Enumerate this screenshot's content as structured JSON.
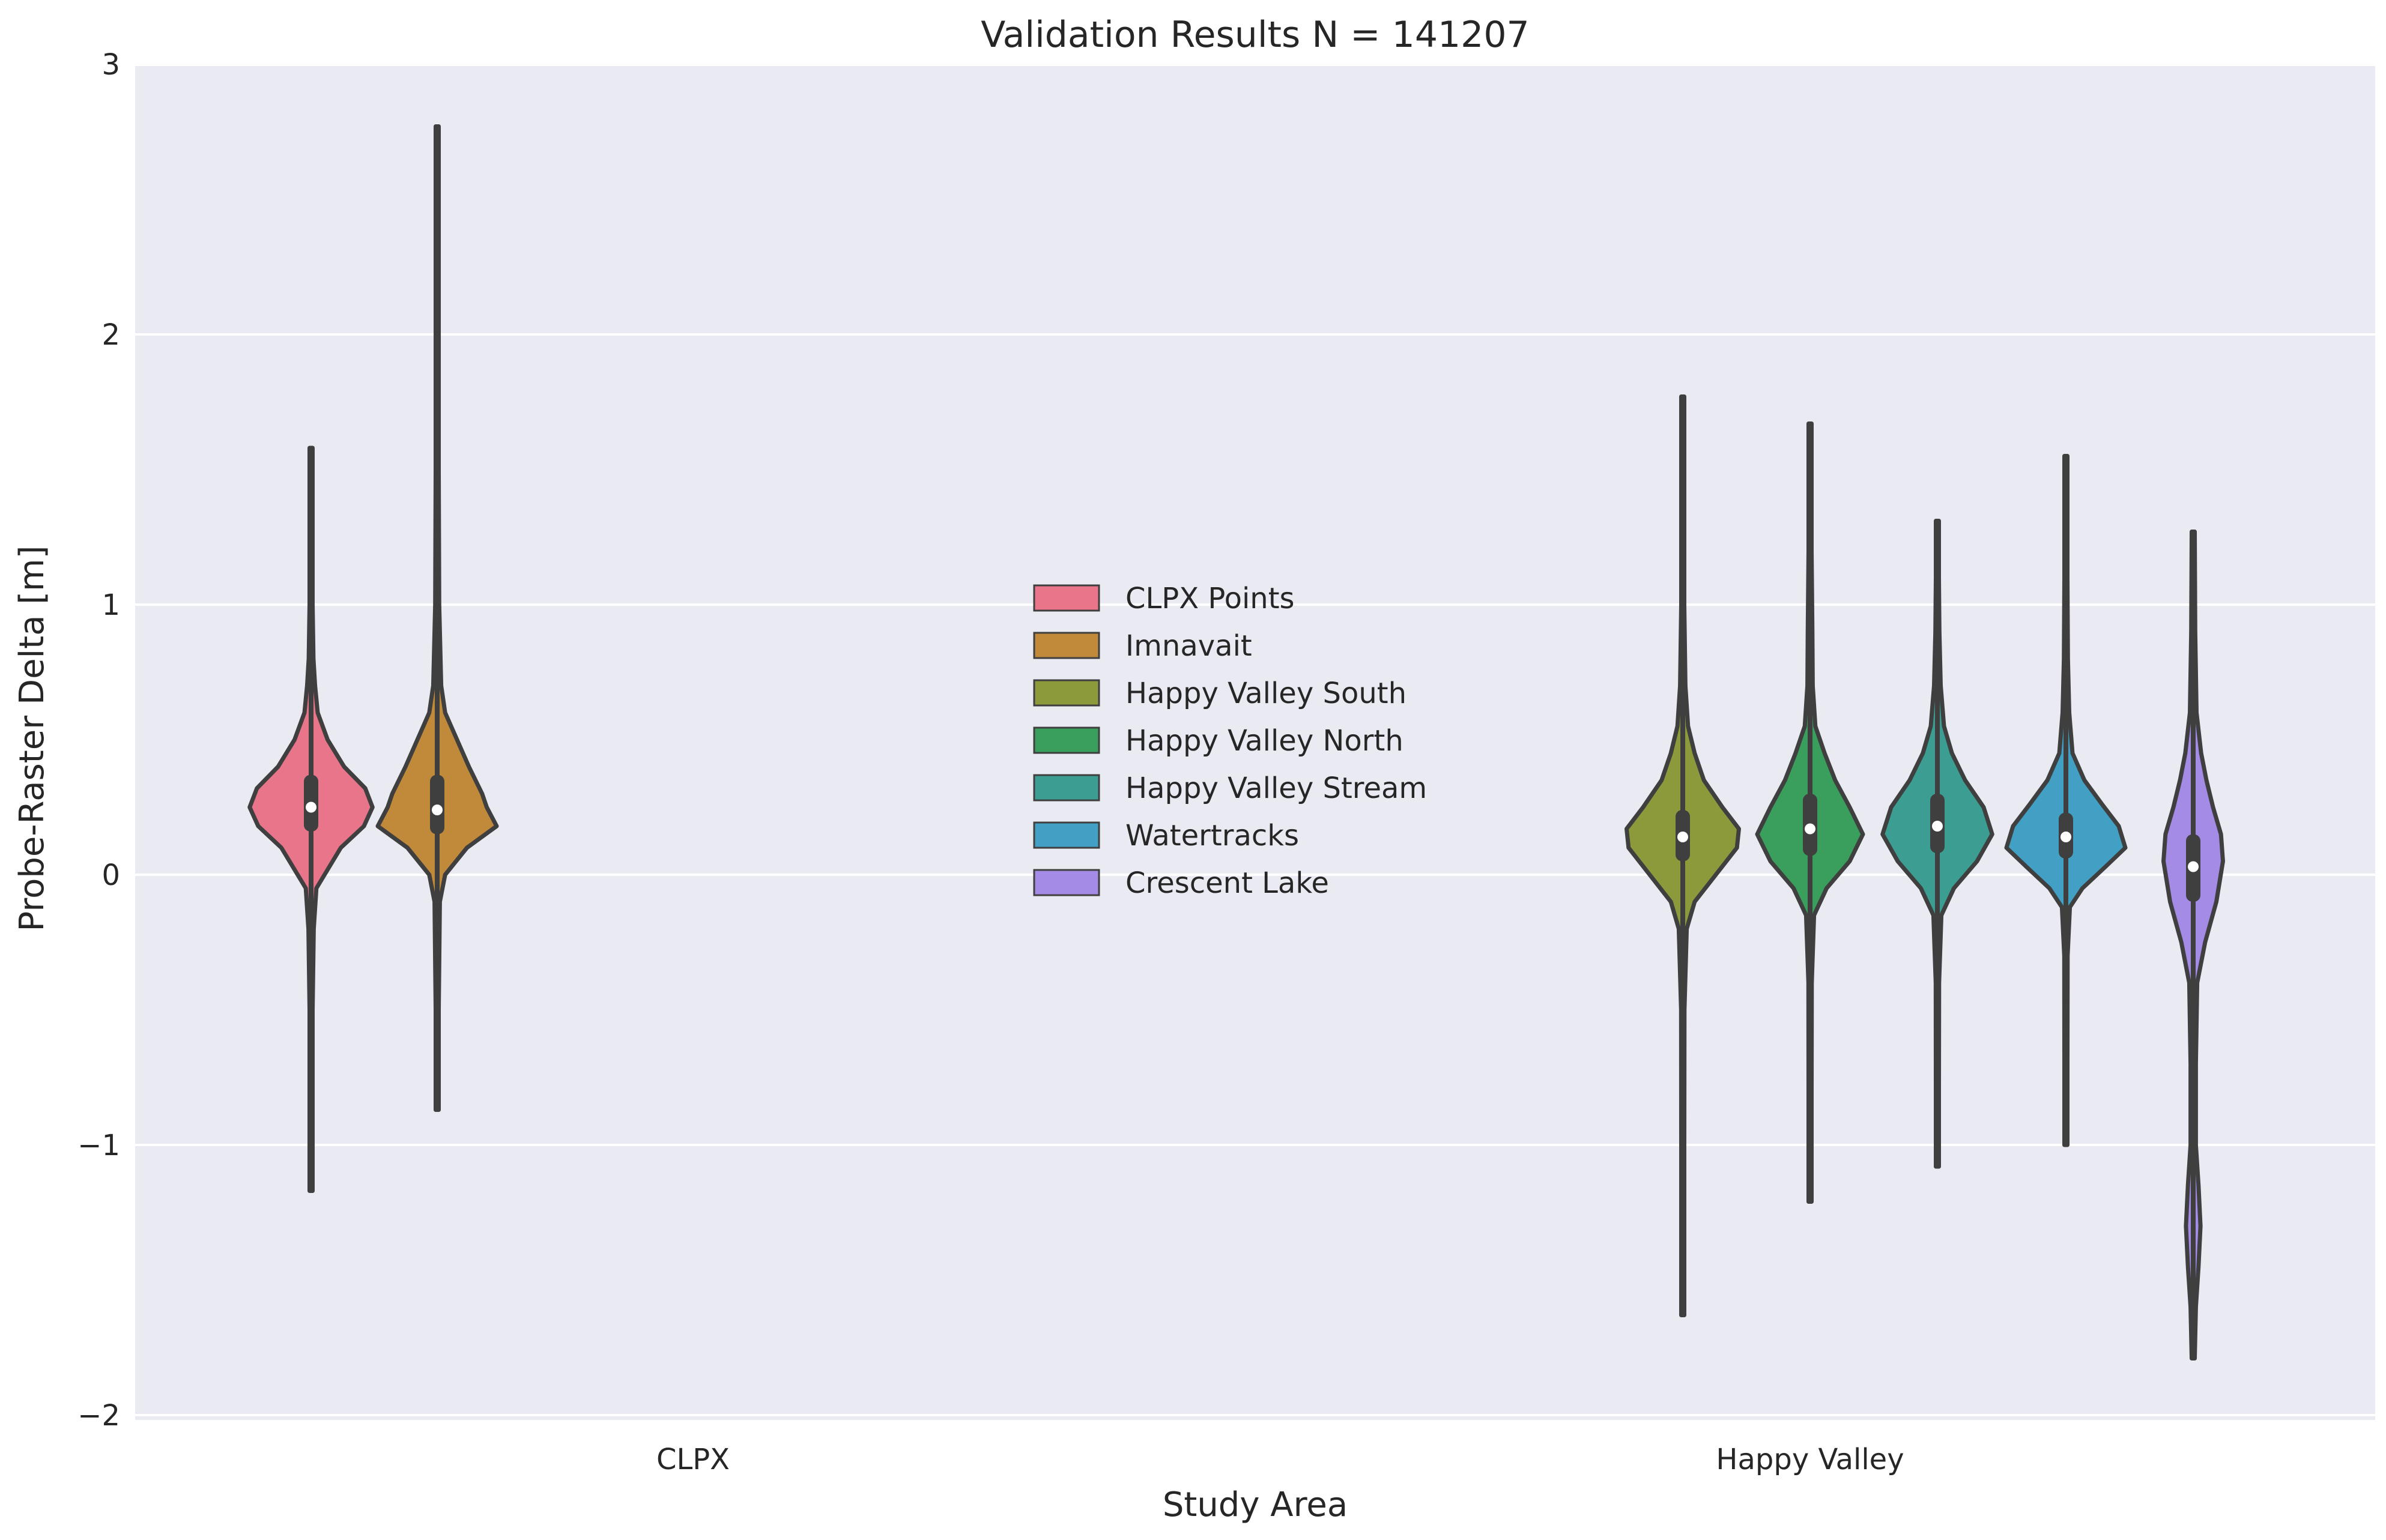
{
  "chart_data": {
    "type": "violin",
    "title": "Validation Results N = 141207",
    "xlabel": "Study Area",
    "ylabel": "Probe-Raster Delta [m]",
    "ylim": [
      -2,
      3
    ],
    "yticks": [
      -2,
      -1,
      0,
      1,
      2,
      3
    ],
    "ytick_labels": [
      "−2",
      "−1",
      "0",
      "1",
      "2",
      "3"
    ],
    "grid": true,
    "legend_position": "center",
    "categories": [
      "CLPX",
      "Happy Valley"
    ],
    "series": [
      {
        "name": "CLPX Points",
        "category": "CLPX",
        "color": "#e9758a",
        "min": -1.17,
        "q1": 0.16,
        "median": 0.25,
        "q3": 0.37,
        "max": 1.58,
        "profile": [
          [
            -1.17,
            0.0
          ],
          [
            -0.9,
            0.01
          ],
          [
            -0.5,
            0.02
          ],
          [
            -0.2,
            0.04
          ],
          [
            -0.05,
            0.08
          ],
          [
            0.1,
            0.45
          ],
          [
            0.18,
            0.8
          ],
          [
            0.25,
            0.93
          ],
          [
            0.32,
            0.82
          ],
          [
            0.4,
            0.5
          ],
          [
            0.5,
            0.25
          ],
          [
            0.6,
            0.1
          ],
          [
            0.7,
            0.06
          ],
          [
            0.8,
            0.035
          ],
          [
            1.0,
            0.02
          ],
          [
            1.3,
            0.012
          ],
          [
            1.58,
            0.0
          ]
        ]
      },
      {
        "name": "Imnavait",
        "category": "CLPX",
        "color": "#c18a3a",
        "min": -0.87,
        "q1": 0.15,
        "median": 0.24,
        "q3": 0.37,
        "max": 2.77,
        "profile": [
          [
            -0.87,
            0.0
          ],
          [
            -0.5,
            0.02
          ],
          [
            -0.1,
            0.04
          ],
          [
            0.0,
            0.12
          ],
          [
            0.1,
            0.45
          ],
          [
            0.18,
            0.9
          ],
          [
            0.25,
            0.75
          ],
          [
            0.3,
            0.68
          ],
          [
            0.4,
            0.48
          ],
          [
            0.5,
            0.3
          ],
          [
            0.6,
            0.12
          ],
          [
            0.7,
            0.06
          ],
          [
            1.0,
            0.03
          ],
          [
            1.5,
            0.02
          ],
          [
            2.2,
            0.015
          ],
          [
            2.77,
            0.0
          ]
        ]
      },
      {
        "name": "Happy Valley South",
        "category": "Happy Valley",
        "color": "#8d9a3c",
        "min": -1.63,
        "q1": 0.05,
        "median": 0.14,
        "q3": 0.24,
        "max": 1.77,
        "profile": [
          [
            -1.63,
            0.0
          ],
          [
            -1.0,
            0.015
          ],
          [
            -0.5,
            0.025
          ],
          [
            -0.2,
            0.06
          ],
          [
            -0.1,
            0.18
          ],
          [
            0.0,
            0.5
          ],
          [
            0.1,
            0.82
          ],
          [
            0.17,
            0.85
          ],
          [
            0.25,
            0.6
          ],
          [
            0.35,
            0.32
          ],
          [
            0.45,
            0.18
          ],
          [
            0.55,
            0.08
          ],
          [
            0.7,
            0.04
          ],
          [
            1.0,
            0.02
          ],
          [
            1.4,
            0.012
          ],
          [
            1.77,
            0.0
          ]
        ]
      },
      {
        "name": "Happy Valley North",
        "category": "Happy Valley",
        "color": "#3a9f5d",
        "min": -1.21,
        "q1": 0.07,
        "median": 0.17,
        "q3": 0.3,
        "max": 1.67,
        "profile": [
          [
            -1.21,
            0.0
          ],
          [
            -0.8,
            0.015
          ],
          [
            -0.4,
            0.025
          ],
          [
            -0.15,
            0.06
          ],
          [
            -0.05,
            0.25
          ],
          [
            0.05,
            0.6
          ],
          [
            0.15,
            0.8
          ],
          [
            0.25,
            0.6
          ],
          [
            0.35,
            0.38
          ],
          [
            0.45,
            0.22
          ],
          [
            0.55,
            0.08
          ],
          [
            0.7,
            0.04
          ],
          [
            0.9,
            0.035
          ],
          [
            1.2,
            0.015
          ],
          [
            1.67,
            0.0
          ]
        ]
      },
      {
        "name": "Happy Valley Stream",
        "category": "Happy Valley",
        "color": "#3c9d93",
        "min": -1.08,
        "q1": 0.08,
        "median": 0.18,
        "q3": 0.3,
        "max": 1.31,
        "profile": [
          [
            -1.08,
            0.0
          ],
          [
            -0.8,
            0.015
          ],
          [
            -0.4,
            0.025
          ],
          [
            -0.15,
            0.06
          ],
          [
            -0.05,
            0.25
          ],
          [
            0.05,
            0.6
          ],
          [
            0.15,
            0.83
          ],
          [
            0.25,
            0.7
          ],
          [
            0.35,
            0.42
          ],
          [
            0.45,
            0.22
          ],
          [
            0.55,
            0.1
          ],
          [
            0.7,
            0.05
          ],
          [
            0.9,
            0.03
          ],
          [
            1.1,
            0.015
          ],
          [
            1.31,
            0.0
          ]
        ]
      },
      {
        "name": "Watertracks",
        "category": "Happy Valley",
        "color": "#43a0c5",
        "min": -1.0,
        "q1": 0.06,
        "median": 0.14,
        "q3": 0.23,
        "max": 1.55,
        "profile": [
          [
            -1.0,
            0.0
          ],
          [
            -0.7,
            0.015
          ],
          [
            -0.3,
            0.025
          ],
          [
            -0.12,
            0.06
          ],
          [
            -0.05,
            0.25
          ],
          [
            0.03,
            0.6
          ],
          [
            0.1,
            0.9
          ],
          [
            0.18,
            0.8
          ],
          [
            0.26,
            0.55
          ],
          [
            0.35,
            0.28
          ],
          [
            0.45,
            0.1
          ],
          [
            0.6,
            0.05
          ],
          [
            0.8,
            0.03
          ],
          [
            1.1,
            0.015
          ],
          [
            1.55,
            0.0
          ]
        ]
      },
      {
        "name": "Crescent Lake",
        "category": "Happy Valley",
        "color": "#a48be6",
        "min": -1.79,
        "q1": -0.1,
        "median": 0.03,
        "q3": 0.15,
        "max": 1.27,
        "profile": [
          [
            -1.79,
            0.0
          ],
          [
            -1.6,
            0.04
          ],
          [
            -1.45,
            0.08
          ],
          [
            -1.3,
            0.11
          ],
          [
            -1.15,
            0.08
          ],
          [
            -1.0,
            0.04
          ],
          [
            -0.7,
            0.04
          ],
          [
            -0.4,
            0.06
          ],
          [
            -0.25,
            0.18
          ],
          [
            -0.1,
            0.35
          ],
          [
            0.05,
            0.45
          ],
          [
            0.15,
            0.42
          ],
          [
            0.25,
            0.3
          ],
          [
            0.35,
            0.2
          ],
          [
            0.45,
            0.12
          ],
          [
            0.6,
            0.05
          ],
          [
            0.9,
            0.03
          ],
          [
            1.27,
            0.0
          ]
        ]
      }
    ]
  }
}
